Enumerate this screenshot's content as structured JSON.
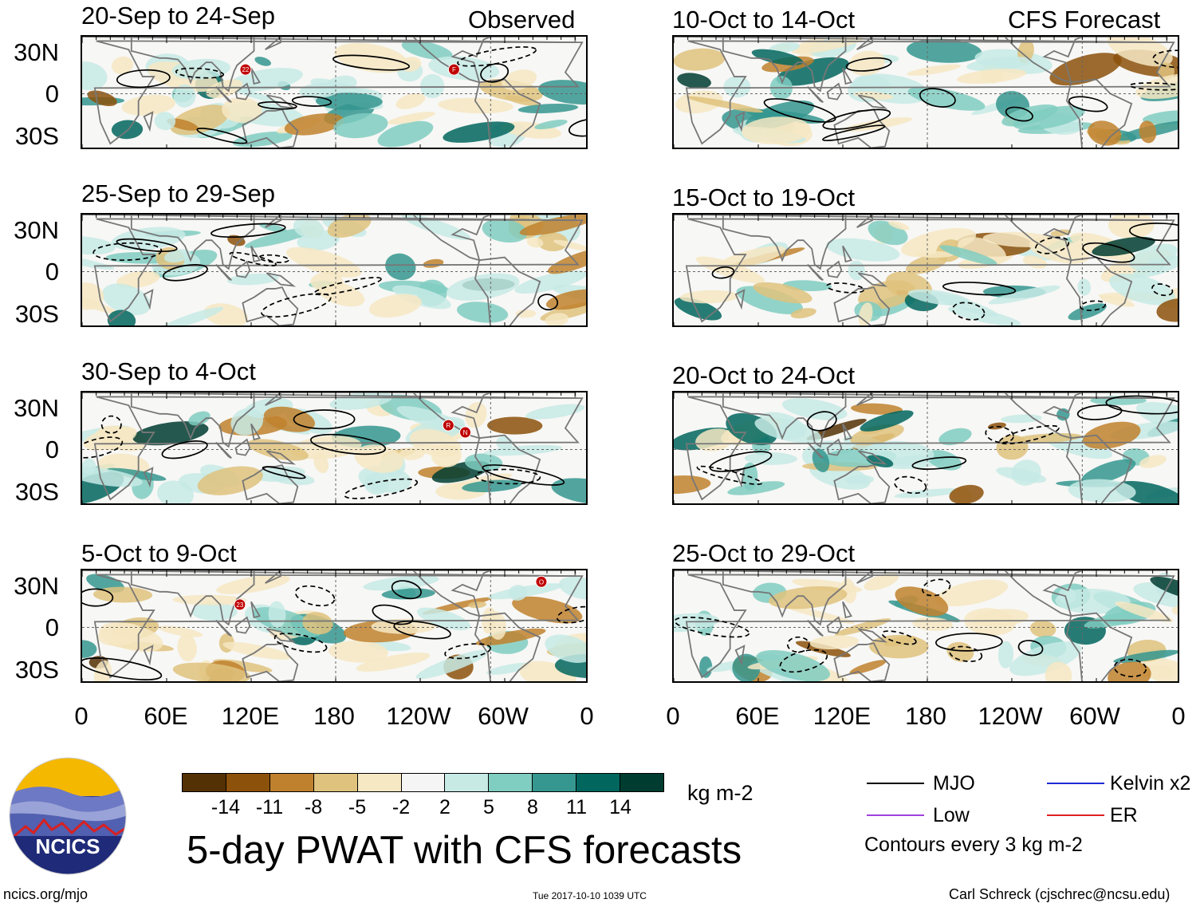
{
  "header": {
    "observed_label": "Observed",
    "forecast_label": "CFS Forecast"
  },
  "panels_observed": [
    {
      "title": "20-Sep to 24-Sep",
      "storms": [
        {
          "id": "22",
          "lon": 116,
          "lat": 17
        },
        {
          "id": "F",
          "lon": -96,
          "lat": 17
        }
      ]
    },
    {
      "title": "25-Sep to 29-Sep",
      "storms": []
    },
    {
      "title": "30-Sep to 4-Oct",
      "storms": [
        {
          "id": "R",
          "lon": -100,
          "lat": 17
        },
        {
          "id": "N",
          "lon": -88,
          "lat": 12
        }
      ]
    },
    {
      "title": "5-Oct to 9-Oct",
      "storms": [
        {
          "id": "23",
          "lon": 112,
          "lat": 16
        },
        {
          "id": "O",
          "lon": -34,
          "lat": 32
        }
      ]
    }
  ],
  "panels_forecast": [
    {
      "title": "10-Oct to 14-Oct"
    },
    {
      "title": "15-Oct to 19-Oct"
    },
    {
      "title": "20-Oct to 24-Oct"
    },
    {
      "title": "25-Oct to 29-Oct"
    }
  ],
  "lat_labels": [
    "30N",
    "0",
    "30S"
  ],
  "lon_labels": [
    "0",
    "60E",
    "120E",
    "180",
    "120W",
    "60W",
    "0"
  ],
  "colorbar": {
    "colors": [
      "#543005",
      "#8c510a",
      "#bf812d",
      "#dfc27d",
      "#f6e8c3",
      "#f5f5f5",
      "#c7eae5",
      "#80cdc1",
      "#35978f",
      "#01665e",
      "#003c30"
    ],
    "tick_labels": [
      "-14",
      "-11",
      "-8",
      "-5",
      "-2",
      "2",
      "5",
      "8",
      "11",
      "14"
    ],
    "units": "kg m-2"
  },
  "legend": {
    "items": [
      {
        "label": "MJO",
        "color": "#000000"
      },
      {
        "label": "Kelvin x2",
        "color": "#1f2bd6"
      },
      {
        "label": "Low",
        "color": "#a040e0"
      },
      {
        "label": "ER",
        "color": "#e02020"
      }
    ],
    "note": "Contours every 3 kg m-2"
  },
  "footer": {
    "main_title": "5-day PWAT with CFS forecasts",
    "logo_text": "NCICS",
    "url": "ncics.org/mjo",
    "timestamp": "Tue 2017-10-10 1039 UTC",
    "author": "Carl Schreck (cjschrec@ncsu.edu)"
  }
}
